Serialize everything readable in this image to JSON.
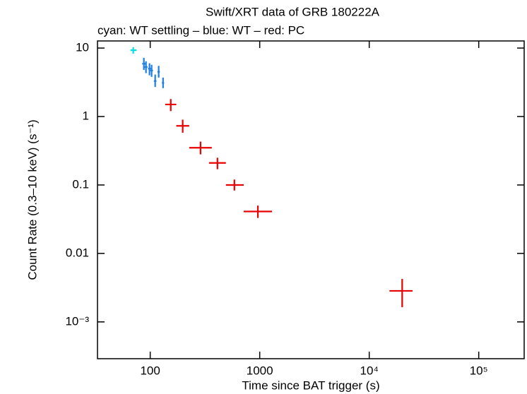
{
  "chart_data": {
    "type": "scatter",
    "title": "Swift/XRT data of GRB 180222A",
    "subtitle": "cyan: WT settling – blue: WT – red: PC",
    "x_label": "Time since BAT trigger (s)",
    "y_label": "Count Rate (0.3–10 keV) (s⁻¹)",
    "x_log": true,
    "y_log": true,
    "xlim": [
      33,
      260000
    ],
    "ylim": [
      0.00029,
      12.7
    ],
    "xticks": [
      100,
      1000,
      {
        "value": 10000,
        "label": "10⁴"
      },
      {
        "value": 100000,
        "label": "10⁵"
      }
    ],
    "yticks": [
      10,
      1,
      0.1,
      0.01,
      {
        "value": 0.001,
        "label": "10⁻³"
      }
    ],
    "series": [
      {
        "name": "WT settling",
        "color": "#00e0e0",
        "x": [
          70
        ],
        "values": [
          9.3
        ],
        "xerr": [
          [
            4,
            5
          ]
        ],
        "yerr": [
          [
            1,
            1
          ]
        ]
      },
      {
        "name": "WT",
        "color": "#1f7fe0",
        "x": [
          87.5,
          91.5,
          98.5,
          103,
          111,
          119.5,
          131
        ],
        "values": [
          5.9,
          5.3,
          5.0,
          4.7,
          3.3,
          4.5,
          3.1
        ],
        "xerr": [
          [
            3,
            3
          ],
          [
            3,
            3
          ],
          [
            3,
            3
          ],
          [
            3,
            3
          ],
          [
            3,
            3
          ],
          [
            3,
            3
          ],
          [
            3,
            3
          ]
        ],
        "yerr": [
          [
            1.1,
            1.3
          ],
          [
            1,
            1.1
          ],
          [
            1,
            1
          ],
          [
            0.9,
            1
          ],
          [
            0.6,
            0.8
          ],
          [
            0.8,
            1
          ],
          [
            0.5,
            0.6
          ]
        ]
      },
      {
        "name": "PC",
        "color": "#e60000",
        "x": [
          154,
          198,
          288,
          411,
          587,
          962,
          20000
        ],
        "values": [
          1.5,
          0.73,
          0.35,
          0.21,
          0.1,
          0.041,
          0.00284
        ],
        "xerr": [
          [
            17,
            19
          ],
          [
            25,
            29
          ],
          [
            61,
            77
          ],
          [
            67,
            80
          ],
          [
            96,
            127
          ],
          [
            248,
            333
          ],
          [
            4700,
            4900
          ]
        ],
        "yerr": [
          [
            0.3,
            0.3
          ],
          [
            0.15,
            0.17
          ],
          [
            0.07,
            0.08
          ],
          [
            0.04,
            0.04
          ],
          [
            0.017,
            0.02
          ],
          [
            0.008,
            0.009
          ],
          [
            0.0012,
            0.0014
          ]
        ]
      }
    ]
  }
}
